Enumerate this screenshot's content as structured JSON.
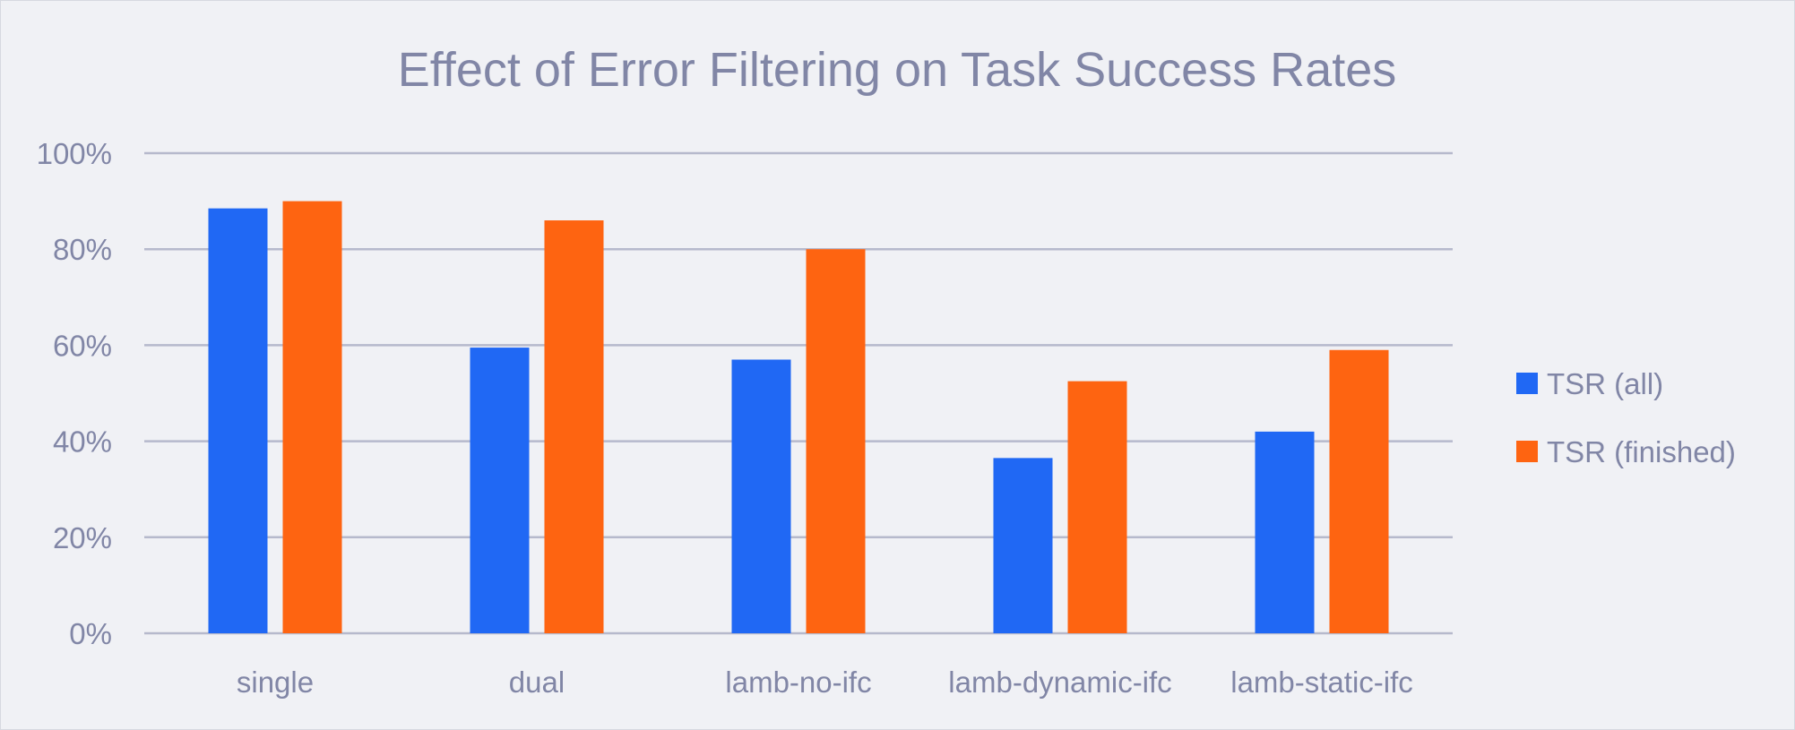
{
  "chart_data": {
    "type": "bar",
    "title": "Effect of Error Filtering on Task Success Rates",
    "xlabel": "",
    "ylabel": "",
    "categories": [
      "single",
      "dual",
      "lamb-no-ifc",
      "lamb-dynamic-ifc",
      "lamb-static-ifc"
    ],
    "series": [
      {
        "name": "TSR (all)",
        "color": "#2068f4",
        "values": [
          88.5,
          59.5,
          57,
          36.5,
          42
        ]
      },
      {
        "name": "TSR (finished)",
        "color": "#fe6411",
        "values": [
          90,
          86,
          80,
          52.5,
          59
        ]
      }
    ],
    "ylim": [
      0,
      100
    ],
    "yticks": [
      0,
      20,
      40,
      60,
      80,
      100
    ],
    "ytick_labels": [
      "0%",
      "20%",
      "40%",
      "60%",
      "80%",
      "100%"
    ],
    "grid": true,
    "legend_position": "right",
    "colors": {
      "background": "#f0f1f5",
      "text": "#8186a6",
      "grid": "#b6b9cc"
    }
  }
}
